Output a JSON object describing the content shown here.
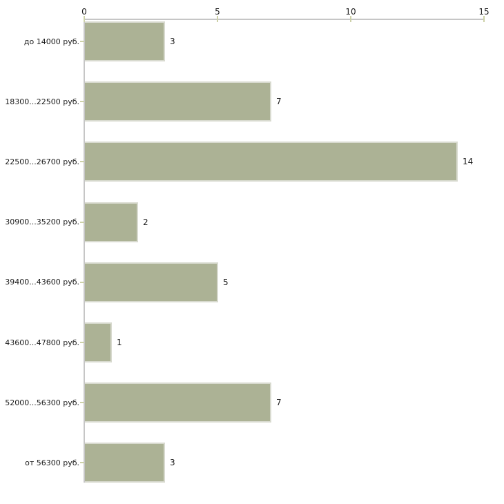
{
  "chart_data": {
    "type": "bar",
    "orientation": "horizontal",
    "title": "",
    "xlabel": "",
    "ylabel": "",
    "categories": [
      "до 14000 руб.",
      "18300...22500 руб.",
      "22500...26700 руб.",
      "30900...35200 руб.",
      "39400...43600 руб.",
      "43600...47800 руб.",
      "52000...56300 руб.",
      "от 56300 руб."
    ],
    "values": [
      3,
      7,
      14,
      2,
      5,
      1,
      7,
      3
    ],
    "xlim": [
      0,
      15
    ],
    "x_ticks": [
      "0",
      "5",
      "10",
      "15"
    ],
    "x_axis_position": "top",
    "grid": false,
    "legend": false,
    "colors": {
      "background": "#ffffff",
      "bar_fill": "#acb295",
      "bar_border": "#d8dacf",
      "axis_line": "#c6c6c6",
      "tick_mark": "#cdd1a8",
      "text": "#1a1a1a"
    }
  }
}
